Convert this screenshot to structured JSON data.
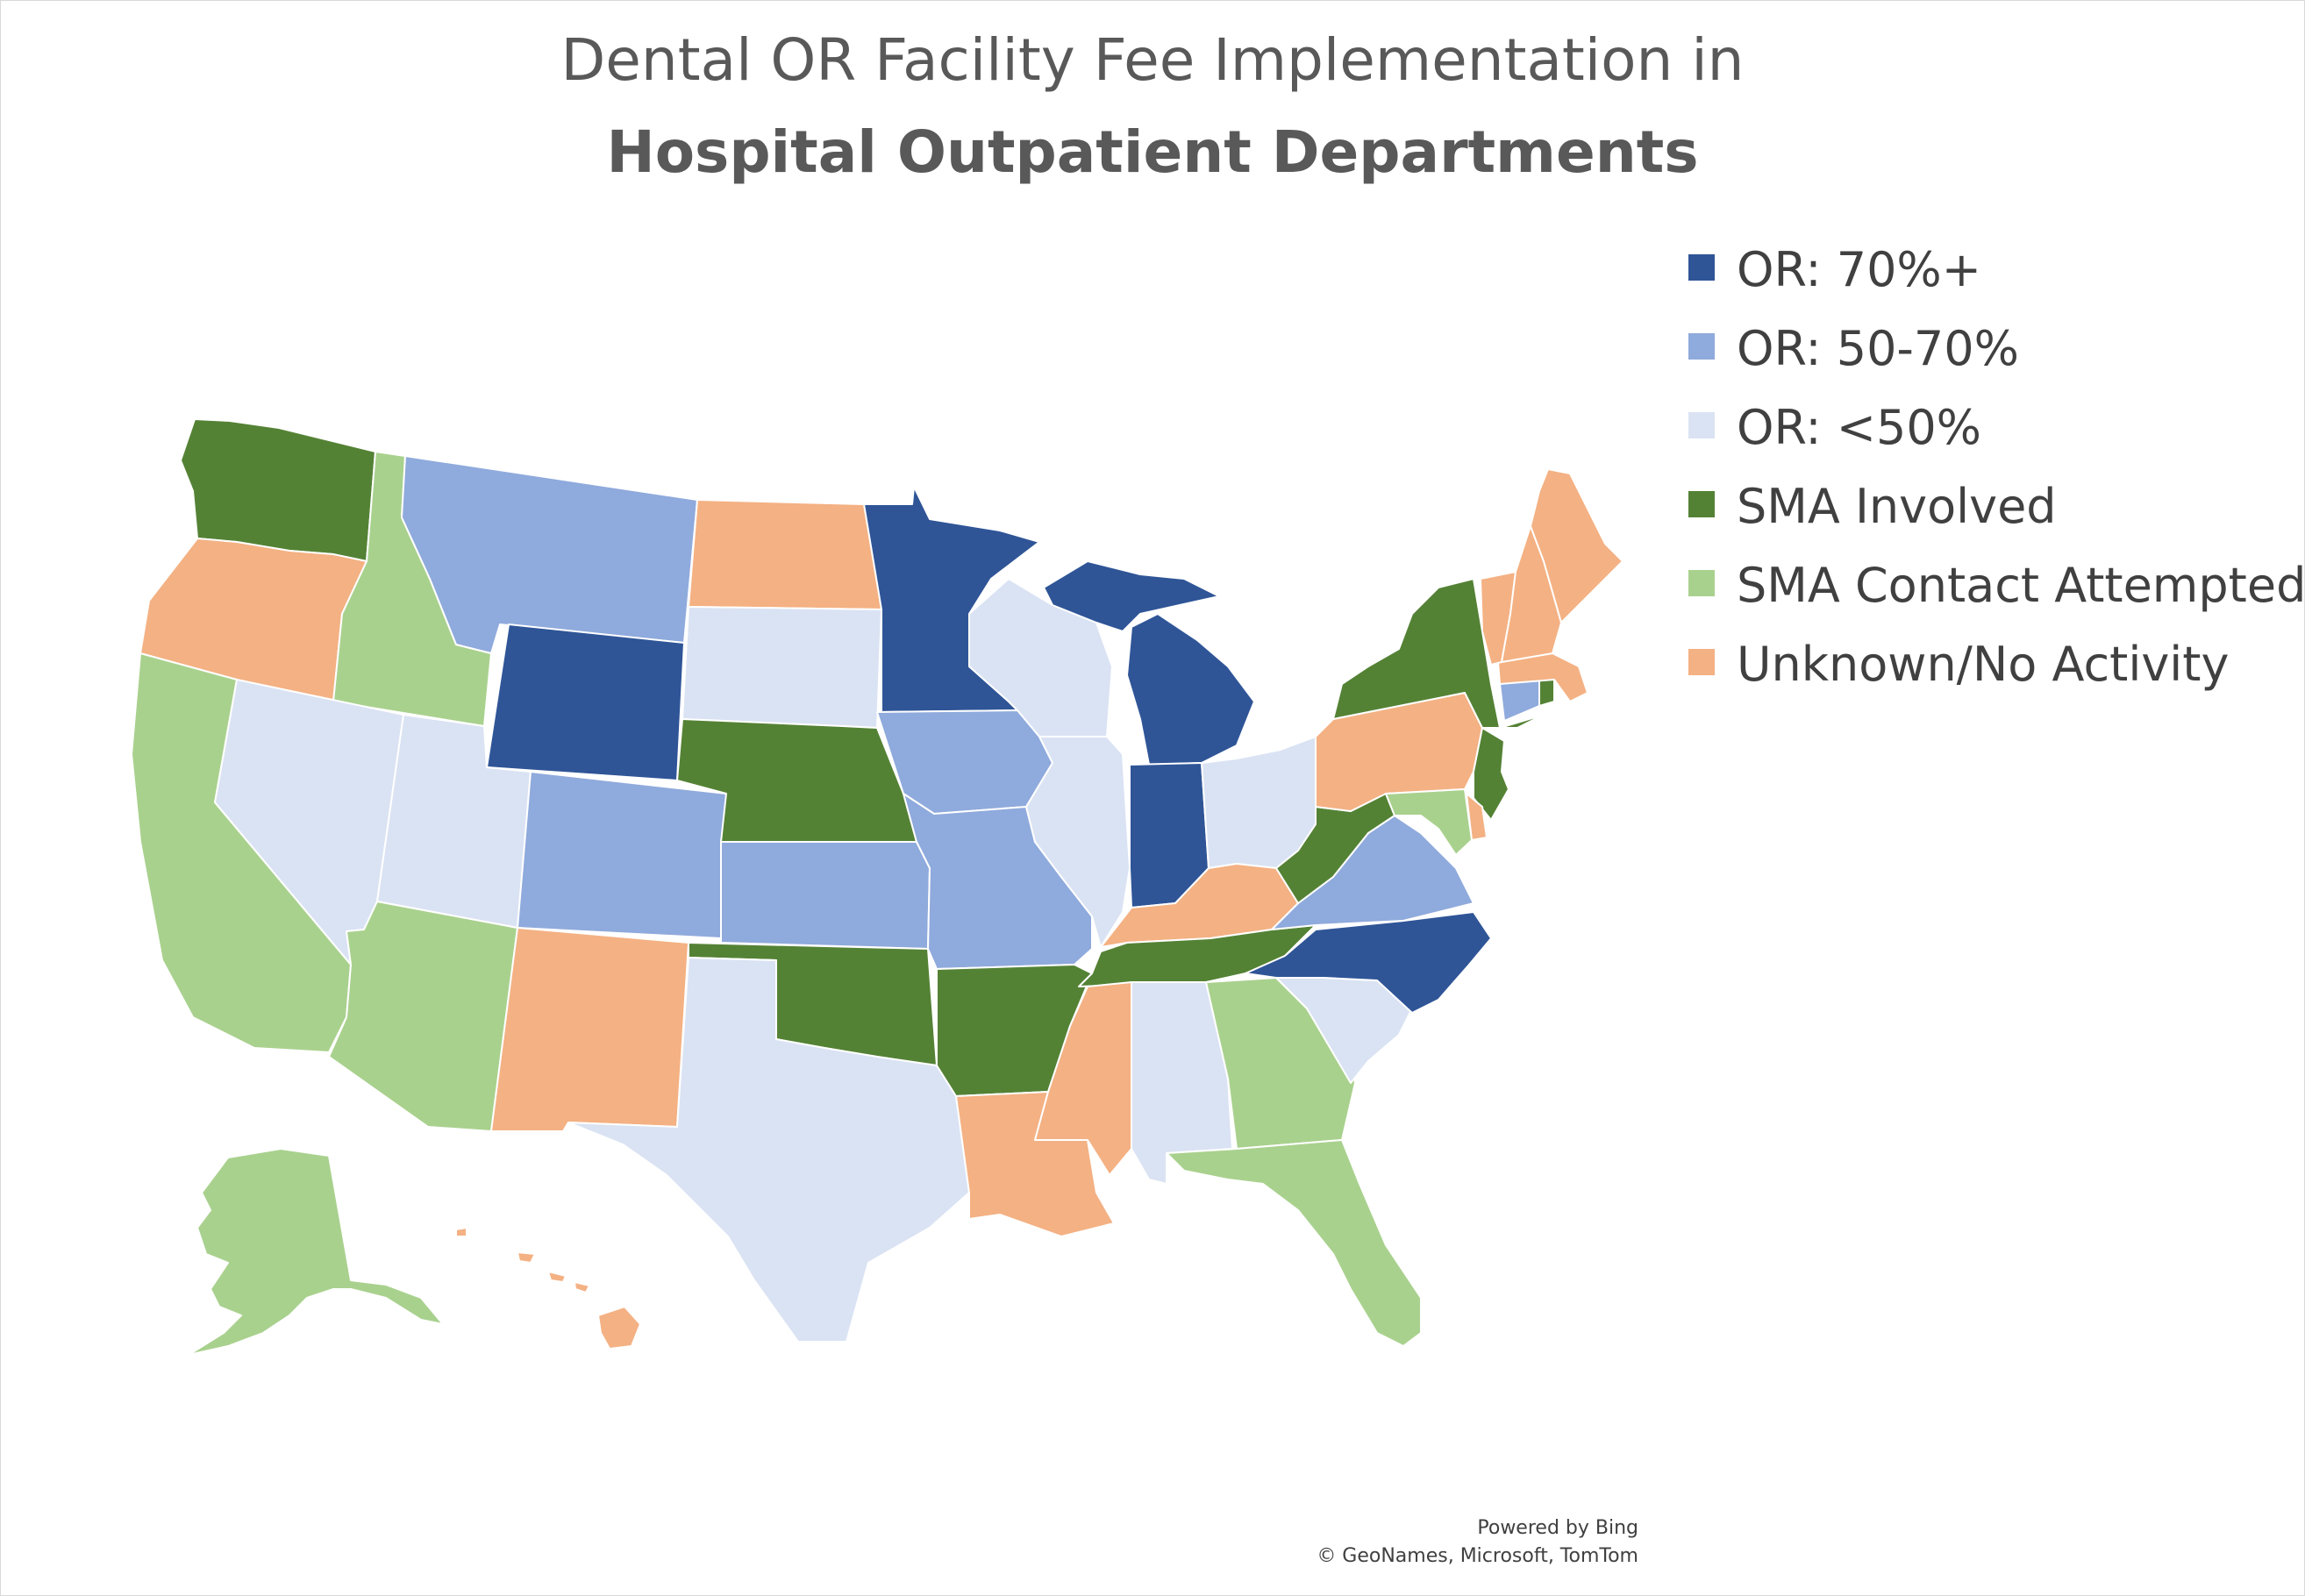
{
  "title": {
    "line1": "Dental OR Facility Fee Implementation in",
    "line2": "Hospital Outpatient Departments"
  },
  "legend": [
    {
      "key": "or70",
      "label": "OR: 70%+",
      "color": "#2f5597"
    },
    {
      "key": "or5070",
      "label": "OR: 50-70%",
      "color": "#8faadc"
    },
    {
      "key": "or50",
      "label": "OR: <50%",
      "color": "#dae3f3"
    },
    {
      "key": "sma",
      "label": "SMA Involved",
      "color": "#548235"
    },
    {
      "key": "smaattempt",
      "label": "SMA Contact Attempted",
      "color": "#a9d18e"
    },
    {
      "key": "unknown",
      "label": "Unknown/No Activity",
      "color": "#f4b183"
    }
  ],
  "states": {
    "WA": "sma",
    "OR": "unknown",
    "CA": "smaattempt",
    "ID": "smaattempt",
    "NV": "or50",
    "MT": "or5070",
    "WY": "or70",
    "UT": "or50",
    "AZ": "smaattempt",
    "CO": "or5070",
    "NM": "unknown",
    "ND": "unknown",
    "SD": "or50",
    "NE": "sma",
    "KS": "or5070",
    "OK": "sma",
    "TX": "or50",
    "MN": "or70",
    "IA": "or5070",
    "MO": "or5070",
    "AR": "sma",
    "LA": "unknown",
    "WI": "or50",
    "IL": "or50",
    "MI": "or70",
    "IN": "or70",
    "OH": "or50",
    "KY": "unknown",
    "TN": "sma",
    "MS": "unknown",
    "AL": "or50",
    "GA": "smaattempt",
    "FL": "smaattempt",
    "SC": "or50",
    "NC": "or70",
    "VA": "or5070",
    "WV": "sma",
    "PA": "unknown",
    "NY": "sma",
    "NJ": "sma",
    "DE": "unknown",
    "MD": "smaattempt",
    "CT": "or5070",
    "RI": "sma",
    "MA": "unknown",
    "VT": "unknown",
    "NH": "unknown",
    "ME": "unknown",
    "AK": "smaattempt",
    "HI": "unknown"
  },
  "credits": {
    "line1": "Powered by Bing",
    "line2": "© GeoNames, Microsoft, TomTom"
  }
}
